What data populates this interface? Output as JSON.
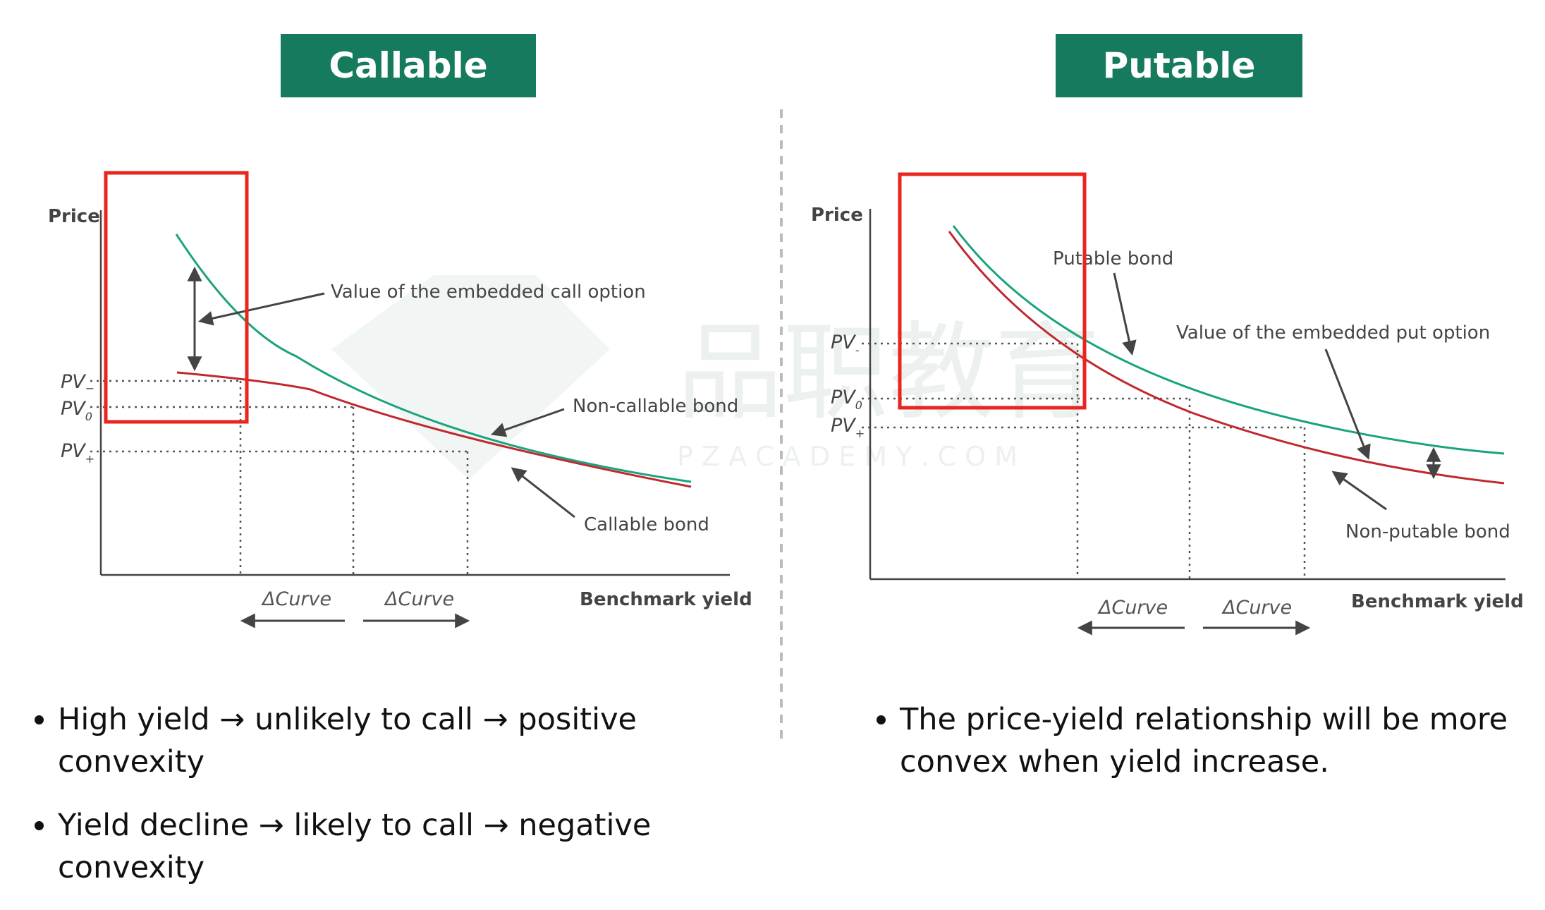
{
  "titles": {
    "callable": "Callable",
    "putable": "Putable"
  },
  "callable_chart": {
    "y_axis_label": "Price",
    "x_axis_label": "Benchmark yield",
    "pv_minus": "PV",
    "pv_minus_sub": "−",
    "pv_zero": "PV",
    "pv_zero_sub": "0",
    "pv_plus": "PV",
    "pv_plus_sub": "+",
    "annotation_call_option": "Value of the embedded call option",
    "label_noncallable": "Non-callable bond",
    "label_callable": "Callable bond",
    "delta_left": "ΔCurve",
    "delta_right": "ΔCurve"
  },
  "putable_chart": {
    "y_axis_label": "Price",
    "x_axis_label": "Benchmark yield",
    "pv_minus": "PV",
    "pv_minus_sub": "-",
    "pv_zero": "PV",
    "pv_zero_sub": "0",
    "pv_plus": "PV",
    "pv_plus_sub": "+",
    "label_putable": "Putable bond",
    "annotation_put_option": "Value of the embedded put option",
    "label_nonputable": "Non-putable bond",
    "delta_left": "ΔCurve",
    "delta_right": "ΔCurve"
  },
  "watermark": {
    "text_cn": "品职教育",
    "text_en": "P Z A C A D E M Y . C O M"
  },
  "colors": {
    "title_bg": "#167a5f",
    "green_curve": "#1aa37f",
    "red_curve": "#c0282e",
    "highlight": "#e8251f"
  },
  "bullets_left": [
    "High yield → unlikely to call → positive convexity",
    "Yield decline → likely to call → negative convexity"
  ],
  "bullets_right": [
    "The price-yield relationship will be more convex when yield increase."
  ]
}
